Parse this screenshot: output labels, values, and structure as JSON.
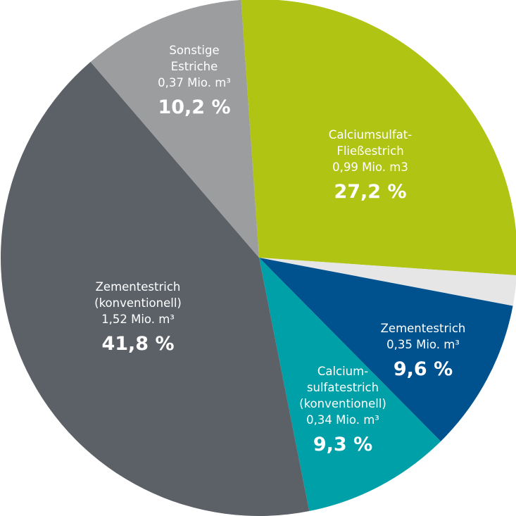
{
  "chart_data": {
    "type": "pie",
    "title": "",
    "slices": [
      {
        "label_lines": [
          "Calciumsulfat-",
          "Fließestrich",
          "0,99 Mio. m3"
        ],
        "value": 0.99,
        "percent_label": "27,2 %",
        "percent": 27.2,
        "color": "#afc413",
        "text_color": "#ffffff"
      },
      {
        "label_lines": [],
        "value": null,
        "percent_label": "",
        "percent": 1.9,
        "color": "#e6e6e6",
        "text_color": "#ffffff"
      },
      {
        "label_lines": [
          "Zementestrich",
          "0,35 Mio. m³"
        ],
        "value": 0.35,
        "percent_label": "9,6 %",
        "percent": 9.6,
        "color": "#00528f",
        "text_color": "#ffffff"
      },
      {
        "label_lines": [
          "Calcium-",
          "sulfatestrich",
          "(konventionell)",
          "0,34 Mio. m³"
        ],
        "value": 0.34,
        "percent_label": "9,3 %",
        "percent": 9.3,
        "color": "#00a0a8",
        "text_color": "#ffffff"
      },
      {
        "label_lines": [
          "Zementestrich",
          "(konventionell)",
          "1,52 Mio. m³"
        ],
        "value": 1.52,
        "percent_label": "41,8 %",
        "percent": 41.8,
        "color": "#5c6168",
        "text_color": "#ffffff"
      },
      {
        "label_lines": [
          "Sonstige",
          "Estriche",
          "0,37 Mio. m³"
        ],
        "value": 0.37,
        "percent_label": "10,2 %",
        "percent": 10.2,
        "color": "#9b9d9f",
        "text_color": "#ffffff"
      }
    ]
  }
}
